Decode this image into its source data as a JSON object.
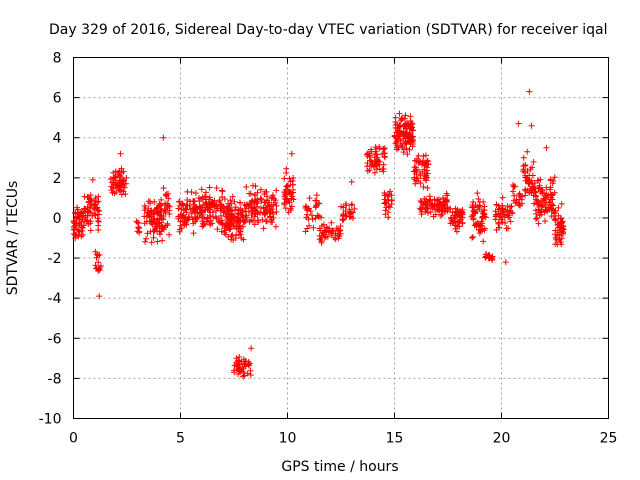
{
  "chart_data": {
    "type": "scatter",
    "title": "Day 329 of 2016, Sidereal Day-to-day VTEC variation (SDTVAR) for receiver iqal",
    "xlabel": "GPS time / hours",
    "ylabel": "SDTVAR / TECUs",
    "xlim": [
      0,
      25
    ],
    "ylim": [
      -10,
      8
    ],
    "xticks": [
      0,
      5,
      10,
      15,
      20,
      25
    ],
    "xtick_labels": [
      "0",
      "5",
      "10",
      "15",
      "20",
      "25"
    ],
    "yticks": [
      -10,
      -8,
      -6,
      -4,
      -2,
      0,
      2,
      4,
      6,
      8
    ],
    "ytick_labels": [
      "-10",
      "-8",
      "-6",
      "-4",
      "-2",
      "0",
      "2",
      "4",
      "6",
      "8"
    ],
    "grid": true,
    "marker": "+",
    "color": "#ff0000",
    "clusters": [
      {
        "x0": 0.0,
        "x1": 0.5,
        "ymin": -1.3,
        "ymax": 0.8,
        "n": 50
      },
      {
        "x0": 0.5,
        "x1": 1.2,
        "ymin": -1.0,
        "ymax": 1.8,
        "n": 55
      },
      {
        "x0": 1.0,
        "x1": 1.3,
        "ymin": -3.4,
        "ymax": -1.2,
        "n": 14
      },
      {
        "x0": 1.7,
        "x1": 2.5,
        "ymin": 0.8,
        "ymax": 2.7,
        "n": 55
      },
      {
        "x0": 2.9,
        "x1": 3.1,
        "ymin": -1.2,
        "ymax": 0.4,
        "n": 10
      },
      {
        "x0": 3.3,
        "x1": 4.2,
        "ymin": -1.8,
        "ymax": 1.6,
        "n": 85
      },
      {
        "x0": 4.2,
        "x1": 4.5,
        "ymin": -1.6,
        "ymax": 2.2,
        "n": 25
      },
      {
        "x0": 4.9,
        "x1": 5.6,
        "ymin": -1.2,
        "ymax": 1.6,
        "n": 50
      },
      {
        "x0": 5.6,
        "x1": 7.0,
        "ymin": -1.0,
        "ymax": 1.8,
        "n": 120
      },
      {
        "x0": 7.0,
        "x1": 8.0,
        "ymin": -1.4,
        "ymax": 1.4,
        "n": 110
      },
      {
        "x0": 7.5,
        "x1": 8.3,
        "ymin": -8.2,
        "ymax": -6.6,
        "n": 40
      },
      {
        "x0": 8.0,
        "x1": 9.5,
        "ymin": -0.9,
        "ymax": 2.0,
        "n": 110
      },
      {
        "x0": 9.8,
        "x1": 10.3,
        "ymin": -0.2,
        "ymax": 2.6,
        "n": 45
      },
      {
        "x0": 10.8,
        "x1": 11.6,
        "ymin": -0.8,
        "ymax": 1.4,
        "n": 30
      },
      {
        "x0": 11.5,
        "x1": 12.5,
        "ymin": -1.4,
        "ymax": 0.0,
        "n": 45
      },
      {
        "x0": 12.5,
        "x1": 13.2,
        "ymin": -0.6,
        "ymax": 1.0,
        "n": 25
      },
      {
        "x0": 13.7,
        "x1": 14.6,
        "ymin": 1.8,
        "ymax": 4.2,
        "n": 55
      },
      {
        "x0": 14.5,
        "x1": 14.9,
        "ymin": -0.2,
        "ymax": 2.0,
        "n": 25
      },
      {
        "x0": 15.0,
        "x1": 15.9,
        "ymin": 3.0,
        "ymax": 5.4,
        "n": 110
      },
      {
        "x0": 15.9,
        "x1": 16.6,
        "ymin": 1.2,
        "ymax": 3.6,
        "n": 55
      },
      {
        "x0": 16.2,
        "x1": 17.5,
        "ymin": -0.2,
        "ymax": 1.4,
        "n": 90
      },
      {
        "x0": 17.6,
        "x1": 18.2,
        "ymin": -1.0,
        "ymax": 1.0,
        "n": 50
      },
      {
        "x0": 18.6,
        "x1": 19.3,
        "ymin": -1.4,
        "ymax": 1.6,
        "n": 60
      },
      {
        "x0": 19.2,
        "x1": 19.6,
        "ymin": -2.2,
        "ymax": -1.7,
        "n": 15
      },
      {
        "x0": 19.7,
        "x1": 20.5,
        "ymin": -0.8,
        "ymax": 1.2,
        "n": 50
      },
      {
        "x0": 20.5,
        "x1": 21.0,
        "ymin": 0.0,
        "ymax": 2.2,
        "n": 20
      },
      {
        "x0": 21.0,
        "x1": 21.5,
        "ymin": 0.4,
        "ymax": 3.4,
        "n": 40
      },
      {
        "x0": 21.5,
        "x1": 22.5,
        "ymin": -0.8,
        "ymax": 2.6,
        "n": 95
      },
      {
        "x0": 22.5,
        "x1": 22.9,
        "ymin": -2.0,
        "ymax": 1.0,
        "n": 50
      }
    ],
    "outliers": [
      {
        "x": 1.2,
        "y": -3.9
      },
      {
        "x": 0.9,
        "y": 1.9
      },
      {
        "x": 2.2,
        "y": 3.2
      },
      {
        "x": 4.2,
        "y": 4.0
      },
      {
        "x": 8.3,
        "y": -6.5
      },
      {
        "x": 10.2,
        "y": 3.2
      },
      {
        "x": 13.0,
        "y": 1.8
      },
      {
        "x": 19.4,
        "y": -2.0
      },
      {
        "x": 20.2,
        "y": -2.2
      },
      {
        "x": 20.8,
        "y": 4.7
      },
      {
        "x": 21.3,
        "y": 6.3
      },
      {
        "x": 21.4,
        "y": 4.6
      },
      {
        "x": 21.2,
        "y": 3.3
      },
      {
        "x": 22.1,
        "y": 3.5
      }
    ]
  }
}
